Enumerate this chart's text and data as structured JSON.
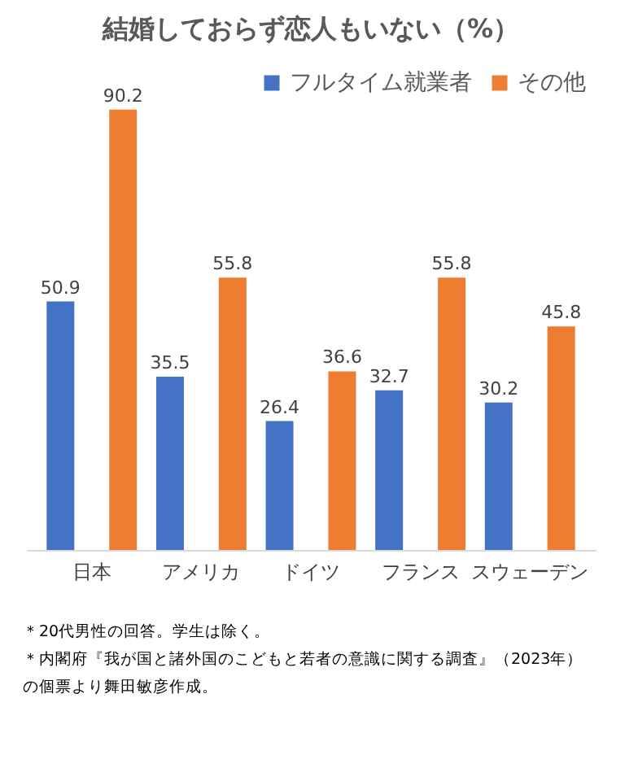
{
  "chart_data": {
    "type": "bar",
    "title": "結婚しておらず恋人もいない（%）",
    "categories": [
      "日本",
      "アメリカ",
      "ドイツ",
      "フランス",
      "スウェーデン"
    ],
    "series": [
      {
        "name": "フルタイム就業者",
        "color": "#4472c4",
        "values": [
          50.9,
          35.5,
          26.4,
          32.7,
          30.2
        ]
      },
      {
        "name": "その他",
        "color": "#ed7d31",
        "values": [
          90.2,
          55.8,
          36.6,
          55.8,
          45.8
        ]
      }
    ],
    "data_labels": true,
    "legend": "top right",
    "grid": false,
    "annotations": [
      "＊20代男性の回答。学生は除く。",
      "＊内閣府『我が国と諸外国のこどもと若者の意識に関する調査』（2023年）",
      "の個票より舞田敏彦作成。"
    ]
  }
}
